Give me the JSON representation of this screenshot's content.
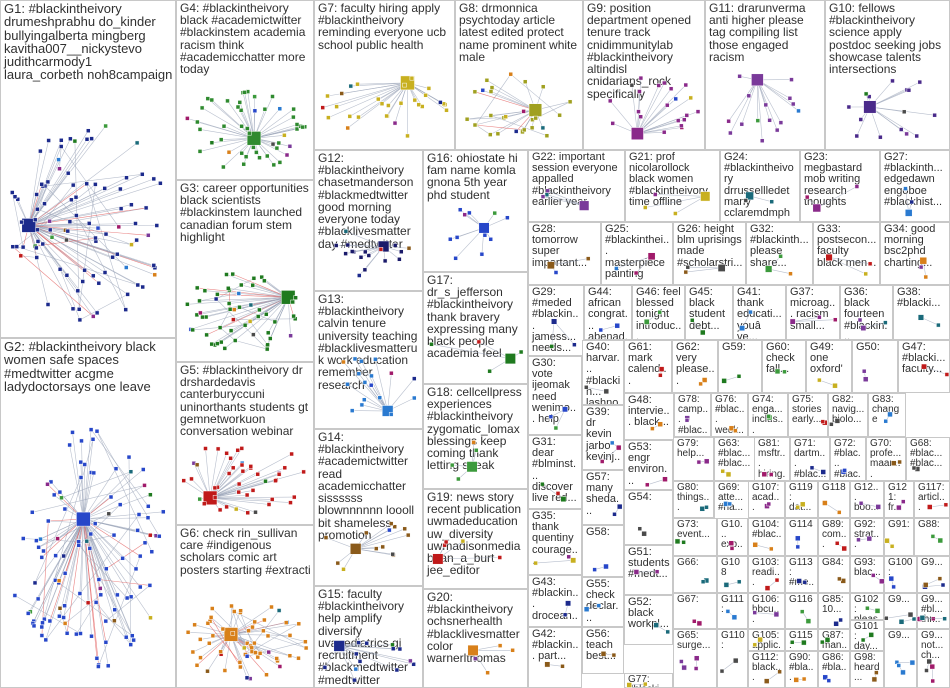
{
  "title": "",
  "groups": [
    {
      "id": "G1",
      "label": "G1: #blackintheivory drumeshprabhu do_kinder bullyingalberta mingberg kavitha007__nickystevo judithcarmody1 laura_corbeth noh8campaign",
      "nodes": 95,
      "hub": true
    },
    {
      "id": "G2",
      "label": "G2: #blackintheivory black women safe spaces #medtwitter acgme ladydoctorsays one leave",
      "nodes": 110,
      "hub": true
    },
    {
      "id": "G3",
      "label": "G3: career opportunities black scientists #blackinstem launched canadian forum stem highlight",
      "nodes": 55,
      "hub": true
    },
    {
      "id": "G4",
      "label": "G4: #blackintheivory black #academictwitter #blackinstem academia racism think #academicchatter more today",
      "nodes": 50,
      "hub": false
    },
    {
      "id": "G5",
      "label": "G5: #blackintheivory dr drshardedavis canterburyccuni uninorthants students gt gemnetworkuon conversation webinar",
      "nodes": 45,
      "hub": false
    },
    {
      "id": "G6",
      "label": "G6: check rin_sullivan care #indigenous scholars comic art posters starting #extracti",
      "nodes": 60,
      "hub": true
    },
    {
      "id": "G7",
      "label": "G7: faculty hiring apply #blackintheivory reminding everyone ucb school public health",
      "nodes": 30,
      "hub": false
    },
    {
      "id": "G8",
      "label": "G8: drmonnica psychtoday article latest edited protect name prominent white male",
      "nodes": 30,
      "hub": true
    },
    {
      "id": "G9",
      "label": "G9: position department opened tenure track cnidimmunitylab #blackintheivory altindisl cnidarians_rock specifically",
      "nodes": 22,
      "hub": false
    },
    {
      "id": "G10",
      "label": "G10: fellows #blackintheivory science apply postdoc seeking jobs showcase talents intersections",
      "nodes": 16,
      "hub": false
    },
    {
      "id": "G11",
      "label": "G11: drarunverma anti higher please tag compiling list those engaged racism",
      "nodes": 16,
      "hub": false
    },
    {
      "id": "G12",
      "label": "G12: #blackintheivory chasetmanderson #blackmedtwitter good morning everyone today #blacklivesmatter day #medtwitter",
      "nodes": 18,
      "hub": false
    },
    {
      "id": "G13",
      "label": "G13: #blackintheivory calvin tenure university teaching #blacklivesmatteruk work education remember research",
      "nodes": 18,
      "hub": false
    },
    {
      "id": "G14",
      "label": "G14: #blackintheivory #academictwitter read academicchatter sissssss blownnnnnn loooll bit shameless promotion",
      "nodes": 14,
      "hub": false
    },
    {
      "id": "G15",
      "label": "G15: faculty #blackintheivory help amplify diversify uvapediatrics gi recruitment #blackmedtwitter #medtwitter",
      "nodes": 14,
      "hub": false
    },
    {
      "id": "G16",
      "label": "G16: ohiostate hi fam name komla gnona 5th year phd student",
      "nodes": 12,
      "hub": false
    },
    {
      "id": "G17",
      "label": "G17: dr_s_jefferson #blackintheivory thank bravery expressing many black people academia feel",
      "nodes": 5,
      "hub": false
    },
    {
      "id": "G18",
      "label": "G18: cellcellpress experiences #blackintheivory zygomatic_lomax blessings keep coming thank letting speak",
      "nodes": 5,
      "hub": false
    },
    {
      "id": "G19",
      "label": "G19: news story recent publication uwmadeducation uw_diversity uwmadisonmedia brian_a_burt jee_editor",
      "nodes": 5,
      "hub": false
    },
    {
      "id": "G20",
      "label": "G20: #blackintheivory ochsnerhealth #blacklivesmatter color warnerlthomas",
      "nodes": 5,
      "hub": false
    },
    {
      "id": "G21",
      "label": "G21: prof nicolarollock black women #blackintheivory time offline",
      "nodes": 4,
      "hub": false
    },
    {
      "id": "G22",
      "label": "G22: important session everyone appalled #blackintheivory earlier year",
      "nodes": 4,
      "hub": false
    },
    {
      "id": "G23",
      "label": "G23: megbastard mob writing research thoughts",
      "nodes": 3,
      "hub": false
    },
    {
      "id": "G24",
      "label": "G24: #blackintheivory drrussellledet many cclaremdmph",
      "nodes": 3,
      "hub": false
    },
    {
      "id": "G25",
      "label": "G25: #blackinthei... masterpiece painting",
      "nodes": 3,
      "hub": false
    },
    {
      "id": "G26",
      "label": "G26: height blm uprisings made #scholarstri...",
      "nodes": 3,
      "hub": false
    },
    {
      "id": "G27",
      "label": "G27: #blackinth... edgedawn engoboe #blackhist...",
      "nodes": 3,
      "hub": false
    },
    {
      "id": "G28",
      "label": "G28: tomorrow super important...",
      "nodes": 3,
      "hub": false
    },
    {
      "id": "G29",
      "label": "G29: #meded #blackin... jamess... needs...",
      "nodes": 3,
      "hub": false
    },
    {
      "id": "G30",
      "label": "G30: vote ijeomak need wenimo... help",
      "nodes": 3,
      "hub": false
    },
    {
      "id": "G31",
      "label": "G31: dear #blminst... discover live red...",
      "nodes": 3,
      "hub": false
    },
    {
      "id": "G32",
      "label": "G32: #blackinth... please share...",
      "nodes": 3,
      "hub": false
    },
    {
      "id": "G33",
      "label": "G33: postsecon... faculty black men...",
      "nodes": 3,
      "hub": false
    },
    {
      "id": "G34",
      "label": "G34: good morning bsc2phd charting...",
      "nodes": 3,
      "hub": false
    },
    {
      "id": "G35",
      "label": "G35: thank quentiny courage...",
      "nodes": 3,
      "hub": false
    },
    {
      "id": "G36",
      "label": "G36: black fourteen #blackin...",
      "nodes": 3,
      "hub": false
    },
    {
      "id": "G37",
      "label": "G37: microag... racism small...",
      "nodes": 3,
      "hub": false
    },
    {
      "id": "G38",
      "label": "G38: #blacki...",
      "nodes": 2,
      "hub": false
    },
    {
      "id": "G39",
      "label": "G39: dr kevin jarbo kevinj...",
      "nodes": 3,
      "hub": false
    },
    {
      "id": "G40",
      "label": "G40: harvar... #blackin... lashno...",
      "nodes": 2,
      "hub": false
    },
    {
      "id": "G41",
      "label": "G41: thank educati... youâ ve...",
      "nodes": 2,
      "hub": false
    },
    {
      "id": "G42",
      "label": "G42: #blackin... part...",
      "nodes": 2,
      "hub": false
    },
    {
      "id": "G43",
      "label": "G43: #blackin... drocean...",
      "nodes": 2,
      "hub": false
    },
    {
      "id": "G44",
      "label": "G44: african congrat... abenad...",
      "nodes": 2,
      "hub": false
    },
    {
      "id": "G45",
      "label": "G45: black student debt...",
      "nodes": 2,
      "hub": false
    },
    {
      "id": "G46",
      "label": "G46: feel blessed tonight introduc...",
      "nodes": 2,
      "hub": false
    },
    {
      "id": "G47",
      "label": "G47: #blacki... faculty...",
      "nodes": 2,
      "hub": false
    },
    {
      "id": "G48",
      "label": "G48: intervie... black...",
      "nodes": 2,
      "hub": false
    },
    {
      "id": "G49",
      "label": "G49: one oxford'",
      "nodes": 2,
      "hub": false
    },
    {
      "id": "G50",
      "label": "G50:",
      "nodes": 2,
      "hub": false
    },
    {
      "id": "G51",
      "label": "G51: students #medt...",
      "nodes": 2,
      "hub": false
    },
    {
      "id": "G52",
      "label": "G52: black workpl...",
      "nodes": 2,
      "hub": false
    },
    {
      "id": "G53",
      "label": "G53: engr environ...",
      "nodes": 2,
      "hub": false
    },
    {
      "id": "G54",
      "label": "G54:",
      "nodes": 2,
      "hub": false
    },
    {
      "id": "G55",
      "label": "G55: check declar...",
      "nodes": 2,
      "hub": false
    },
    {
      "id": "G56",
      "label": "G56: teach best...",
      "nodes": 2,
      "hub": false
    },
    {
      "id": "G57",
      "label": "G57: many sheda...",
      "nodes": 2,
      "hub": false
    },
    {
      "id": "G58",
      "label": "G58:",
      "nodes": 2,
      "hub": false
    },
    {
      "id": "G59",
      "label": "G59:",
      "nodes": 2,
      "hub": false
    },
    {
      "id": "G60",
      "label": "G60: check fall...",
      "nodes": 2,
      "hub": false
    },
    {
      "id": "G61",
      "label": "G61: mark calend...",
      "nodes": 2,
      "hub": false
    },
    {
      "id": "G62",
      "label": "G62: very please...",
      "nodes": 2,
      "hub": false
    },
    {
      "id": "G63",
      "label": "G63: #blac... #blac...",
      "nodes": 2,
      "hub": false
    },
    {
      "id": "G64",
      "label": "G64:",
      "nodes": 2,
      "hub": false
    },
    {
      "id": "G65",
      "label": "G65: surge...",
      "nodes": 2,
      "hub": false
    },
    {
      "id": "G66",
      "label": "G66:",
      "nodes": 2,
      "hub": false
    },
    {
      "id": "G67",
      "label": "G67:",
      "nodes": 2,
      "hub": false
    },
    {
      "id": "G68",
      "label": "G68: #blac... #blac...",
      "nodes": 2,
      "hub": false
    },
    {
      "id": "G69",
      "label": "G69: atte... #na...",
      "nodes": 2,
      "hub": false
    },
    {
      "id": "G70",
      "label": "G70: profe... maan...",
      "nodes": 2,
      "hub": false
    },
    {
      "id": "G71",
      "label": "G71: dartm... #blac...",
      "nodes": 2,
      "hub": false
    },
    {
      "id": "G72",
      "label": "G72: #blac... #blac...",
      "nodes": 2,
      "hub": false
    },
    {
      "id": "G73",
      "label": "G73: event...",
      "nodes": 2,
      "hub": false
    },
    {
      "id": "G74",
      "label": "G74: enga... inclus...",
      "nodes": 2,
      "hub": false
    },
    {
      "id": "G75",
      "label": "G75: stories early...",
      "nodes": 2,
      "hub": false
    },
    {
      "id": "G76",
      "label": "G76: #blac... week...",
      "nodes": 2,
      "hub": false
    },
    {
      "id": "G77",
      "label": "G77: #blacki...",
      "nodes": 2,
      "hub": false
    },
    {
      "id": "G78",
      "label": "G78: camp... #blac...",
      "nodes": 2,
      "hub": false
    },
    {
      "id": "G79",
      "label": "G79: help...",
      "nodes": 2,
      "hub": false
    },
    {
      "id": "G80",
      "label": "G80: things...",
      "nodes": 2,
      "hub": false
    },
    {
      "id": "G81",
      "label": "G81: msftr... hiring...",
      "nodes": 2,
      "hub": false
    },
    {
      "id": "G82",
      "label": "G82: navig... biolo...",
      "nodes": 2,
      "hub": false
    },
    {
      "id": "G83",
      "label": "G83: change",
      "nodes": 2,
      "hub": false
    },
    {
      "id": "G84",
      "label": "G84:",
      "nodes": 2,
      "hub": false
    },
    {
      "id": "G85",
      "label": "G85: 10...",
      "nodes": 2,
      "hub": false
    },
    {
      "id": "G86",
      "label": "G86: #bla...",
      "nodes": 2,
      "hub": false
    },
    {
      "id": "G87",
      "label": "G87: man...",
      "nodes": 2,
      "hub": false
    },
    {
      "id": "G88",
      "label": "G88:",
      "nodes": 2,
      "hub": false
    },
    {
      "id": "G89",
      "label": "G89: com...",
      "nodes": 2,
      "hub": false
    },
    {
      "id": "G90",
      "label": "G90: #bla...",
      "nodes": 2,
      "hub": false
    },
    {
      "id": "G91",
      "label": "G91:",
      "nodes": 2,
      "hub": false
    },
    {
      "id": "G92",
      "label": "G92: strat...",
      "nodes": 2,
      "hub": false
    },
    {
      "id": "G93",
      "label": "G93: blac...",
      "nodes": 2,
      "hub": false
    },
    {
      "id": "G94",
      "label": "G94: grea...",
      "nodes": 2,
      "hub": false
    },
    {
      "id": "G95",
      "label": "G95:",
      "nodes": 2,
      "hub": false
    },
    {
      "id": "G96",
      "label": "G96:",
      "nodes": 2,
      "hub": false
    },
    {
      "id": "G97",
      "label": "G97: #bl... #bl...",
      "nodes": 2,
      "hub": false
    },
    {
      "id": "G98",
      "label": "G98: heard...",
      "nodes": 2,
      "hub": false
    },
    {
      "id": "G99",
      "label": "G9...",
      "nodes": 2,
      "hub": false
    },
    {
      "id": "G100",
      "label": "G100:",
      "nodes": 2,
      "hub": false
    },
    {
      "id": "G101",
      "label": "G101: day...",
      "nodes": 2,
      "hub": false
    },
    {
      "id": "G102",
      "label": "G102: pleas...",
      "nodes": 2,
      "hub": false
    },
    {
      "id": "G103",
      "label": "G103: readi...",
      "nodes": 2,
      "hub": false
    },
    {
      "id": "G104",
      "label": "G104: #blac...",
      "nodes": 2,
      "hub": false
    },
    {
      "id": "G105",
      "label": "G105: applic...",
      "nodes": 2,
      "hub": false
    },
    {
      "id": "G106",
      "label": "G106: hbcu...",
      "nodes": 2,
      "hub": false
    },
    {
      "id": "G107",
      "label": "G107: acad...",
      "nodes": 2,
      "hub": false
    },
    {
      "id": "G108",
      "label": "G108",
      "nodes": 2,
      "hub": false
    },
    {
      "id": "G109",
      "label": "G10... exp...",
      "nodes": 2,
      "hub": false
    },
    {
      "id": "G110",
      "label": "G110:",
      "nodes": 2,
      "hub": false
    },
    {
      "id": "G111",
      "label": "G111:",
      "nodes": 2,
      "hub": false
    },
    {
      "id": "G112",
      "label": "G112: black...",
      "nodes": 2,
      "hub": false
    },
    {
      "id": "G113",
      "label": "G113: #me...",
      "nodes": 2,
      "hub": false
    },
    {
      "id": "G114",
      "label": "G114",
      "nodes": 2,
      "hub": false
    },
    {
      "id": "G115",
      "label": "G115: #bl...",
      "nodes": 2,
      "hub": false
    },
    {
      "id": "G116",
      "label": "G116",
      "nodes": 2,
      "hub": false
    },
    {
      "id": "G117",
      "label": "G117: articl...",
      "nodes": 2,
      "hub": false
    },
    {
      "id": "G118",
      "label": "G118",
      "nodes": 2,
      "hub": false
    },
    {
      "id": "G119",
      "label": "G119: dat...",
      "nodes": 2,
      "hub": false
    },
    {
      "id": "G120",
      "label": "G12... boo...",
      "nodes": 2,
      "hub": false
    },
    {
      "id": "G121",
      "label": "G121: fr...",
      "nodes": 2,
      "hub": false
    },
    {
      "id": "G9x",
      "label": "G9... #bl... thr...",
      "nodes": 2,
      "hub": false
    },
    {
      "id": "G9y",
      "label": "G9... not... ch...",
      "nodes": 2,
      "hub": false
    },
    {
      "id": "G9z",
      "label": "G9...",
      "nodes": 2,
      "hub": false
    },
    {
      "id": "G9w",
      "label": "G9...",
      "nodes": 2,
      "hub": false
    },
    {
      "id": "G9v",
      "label": "G9...",
      "nodes": 2,
      "hub": false
    }
  ],
  "colors": {
    "G1": "#1c2a8c",
    "G2": "#2747c9",
    "G3": "#1f7a1f",
    "G4": "#2f8a2f",
    "G5": "#c01a1a",
    "G6": "#d8801a",
    "G7": "#c8b020",
    "G8": "#a0a020",
    "G9": "#8a2a8a",
    "G10": "#4a2a8a",
    "G11": "#7a3a9a",
    "G12": "#1a1a6a",
    "edge": "#9aa4b8",
    "hub_edge": "#e05050",
    "border": "#c8c8c8",
    "label": "#303030"
  }
}
